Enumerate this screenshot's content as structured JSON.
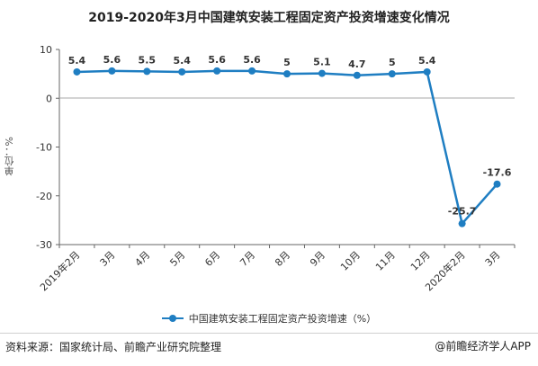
{
  "page": {
    "title": "2019-2020年3月中国建筑安装工程固定资产投资增速变化情况",
    "source": "资料来源：国家统计局、前瞻产业研究院整理",
    "brand": "@前瞻经济学人APP"
  },
  "chart_data": {
    "type": "line",
    "title": "2019-2020年3月中国建筑安装工程固定资产投资增速变化情况",
    "ylabel": "单位：%",
    "xlabel": "",
    "categories": [
      "2019年2月",
      "3月",
      "4月",
      "5月",
      "6月",
      "7月",
      "8月",
      "9月",
      "10月",
      "11月",
      "12月",
      "2020年2月",
      "3月"
    ],
    "series": [
      {
        "name": "中国建筑安装工程固定资产投资增速（%）",
        "values": [
          5.4,
          5.6,
          5.5,
          5.4,
          5.6,
          5.6,
          5,
          5.1,
          4.7,
          5,
          5.4,
          -25.7,
          -17.6
        ],
        "labels": [
          "5.4",
          "5.6",
          "5.5",
          "5.4",
          "5.6",
          "5.6",
          "5",
          "5.1",
          "4.7",
          "5",
          "5.4",
          "-25.7",
          "-17.6"
        ],
        "color": "#1f7ec2"
      }
    ],
    "ylim": [
      -30,
      10
    ],
    "yticks": [
      "10",
      "0",
      "-10",
      "-20",
      "-30"
    ],
    "grid": false,
    "legend": "bottom-center"
  }
}
